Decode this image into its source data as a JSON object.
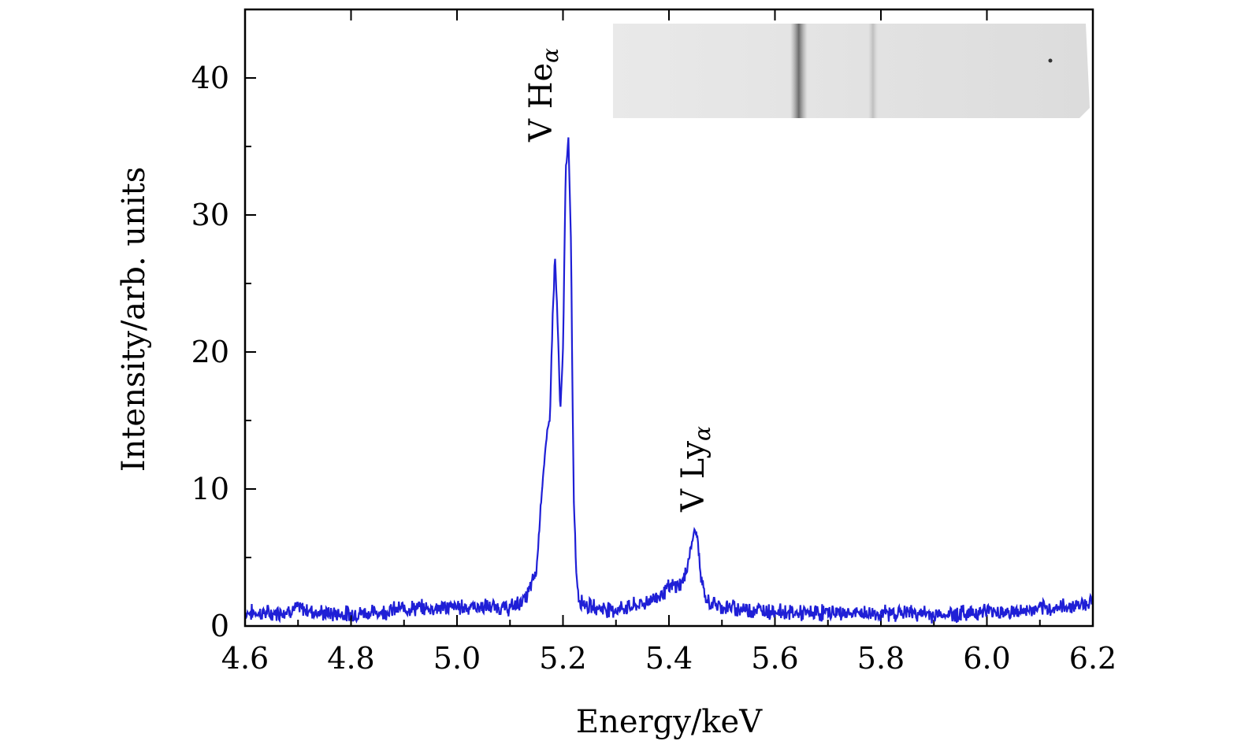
{
  "chart_data": {
    "type": "line",
    "xlabel": "Energy/keV",
    "ylabel": "Intensity/arb. units",
    "xlim": [
      4.6,
      6.2
    ],
    "ylim": [
      0,
      45
    ],
    "x_ticks": [
      4.6,
      4.8,
      5.0,
      5.2,
      5.4,
      5.6,
      5.8,
      6.0,
      6.2
    ],
    "x_tick_labels": [
      "4.6",
      "4.8",
      "5.0",
      "5.2",
      "5.4",
      "5.6",
      "5.8",
      "6.0",
      "6.2"
    ],
    "y_ticks": [
      0,
      10,
      20,
      30,
      40
    ],
    "y_tick_labels": [
      "0",
      "10",
      "20",
      "30",
      "40"
    ],
    "grid": false,
    "line_color": "#1f1fd6",
    "series": [
      {
        "x": [
          4.6,
          4.65,
          4.7,
          4.75,
          4.8,
          4.85,
          4.9,
          4.95,
          5.0,
          5.05,
          5.1,
          5.13,
          5.15,
          5.16,
          5.17,
          5.175,
          5.18,
          5.185,
          5.19,
          5.195,
          5.2,
          5.205,
          5.21,
          5.215,
          5.22,
          5.225,
          5.23,
          5.25,
          5.3,
          5.35,
          5.38,
          5.4,
          5.42,
          5.43,
          5.44,
          5.45,
          5.455,
          5.46,
          5.47,
          5.5,
          5.55,
          5.6,
          5.65,
          5.7,
          5.75,
          5.8,
          5.85,
          5.9,
          5.95,
          6.0,
          6.05,
          6.1,
          6.15,
          6.2
        ],
        "y": [
          1.0,
          0.9,
          1.3,
          0.9,
          0.9,
          1.0,
          1.3,
          1.3,
          1.4,
          1.4,
          1.3,
          2.0,
          4.0,
          10.0,
          14.0,
          15.0,
          22.0,
          27.0,
          22.0,
          15.5,
          20.0,
          33.0,
          35.8,
          28.0,
          10.0,
          4.0,
          2.0,
          1.4,
          1.2,
          1.6,
          2.2,
          2.8,
          3.0,
          3.5,
          5.5,
          7.2,
          6.0,
          3.5,
          1.8,
          1.4,
          1.2,
          1.1,
          0.9,
          1.0,
          0.9,
          0.9,
          1.0,
          0.8,
          0.9,
          1.1,
          1.0,
          1.2,
          1.4,
          1.8
        ]
      }
    ],
    "annotations": [
      {
        "text": "V He",
        "subscript": "α",
        "x": 5.2,
        "y": 36
      },
      {
        "text": "V Ly",
        "subscript": "α",
        "x": 5.45,
        "y": 8
      }
    ]
  },
  "inset": {
    "name": "detector-film-strip",
    "bands": [
      {
        "x": 5.645,
        "strength": 0.85
      },
      {
        "x": 5.785,
        "strength": 0.25
      }
    ]
  }
}
